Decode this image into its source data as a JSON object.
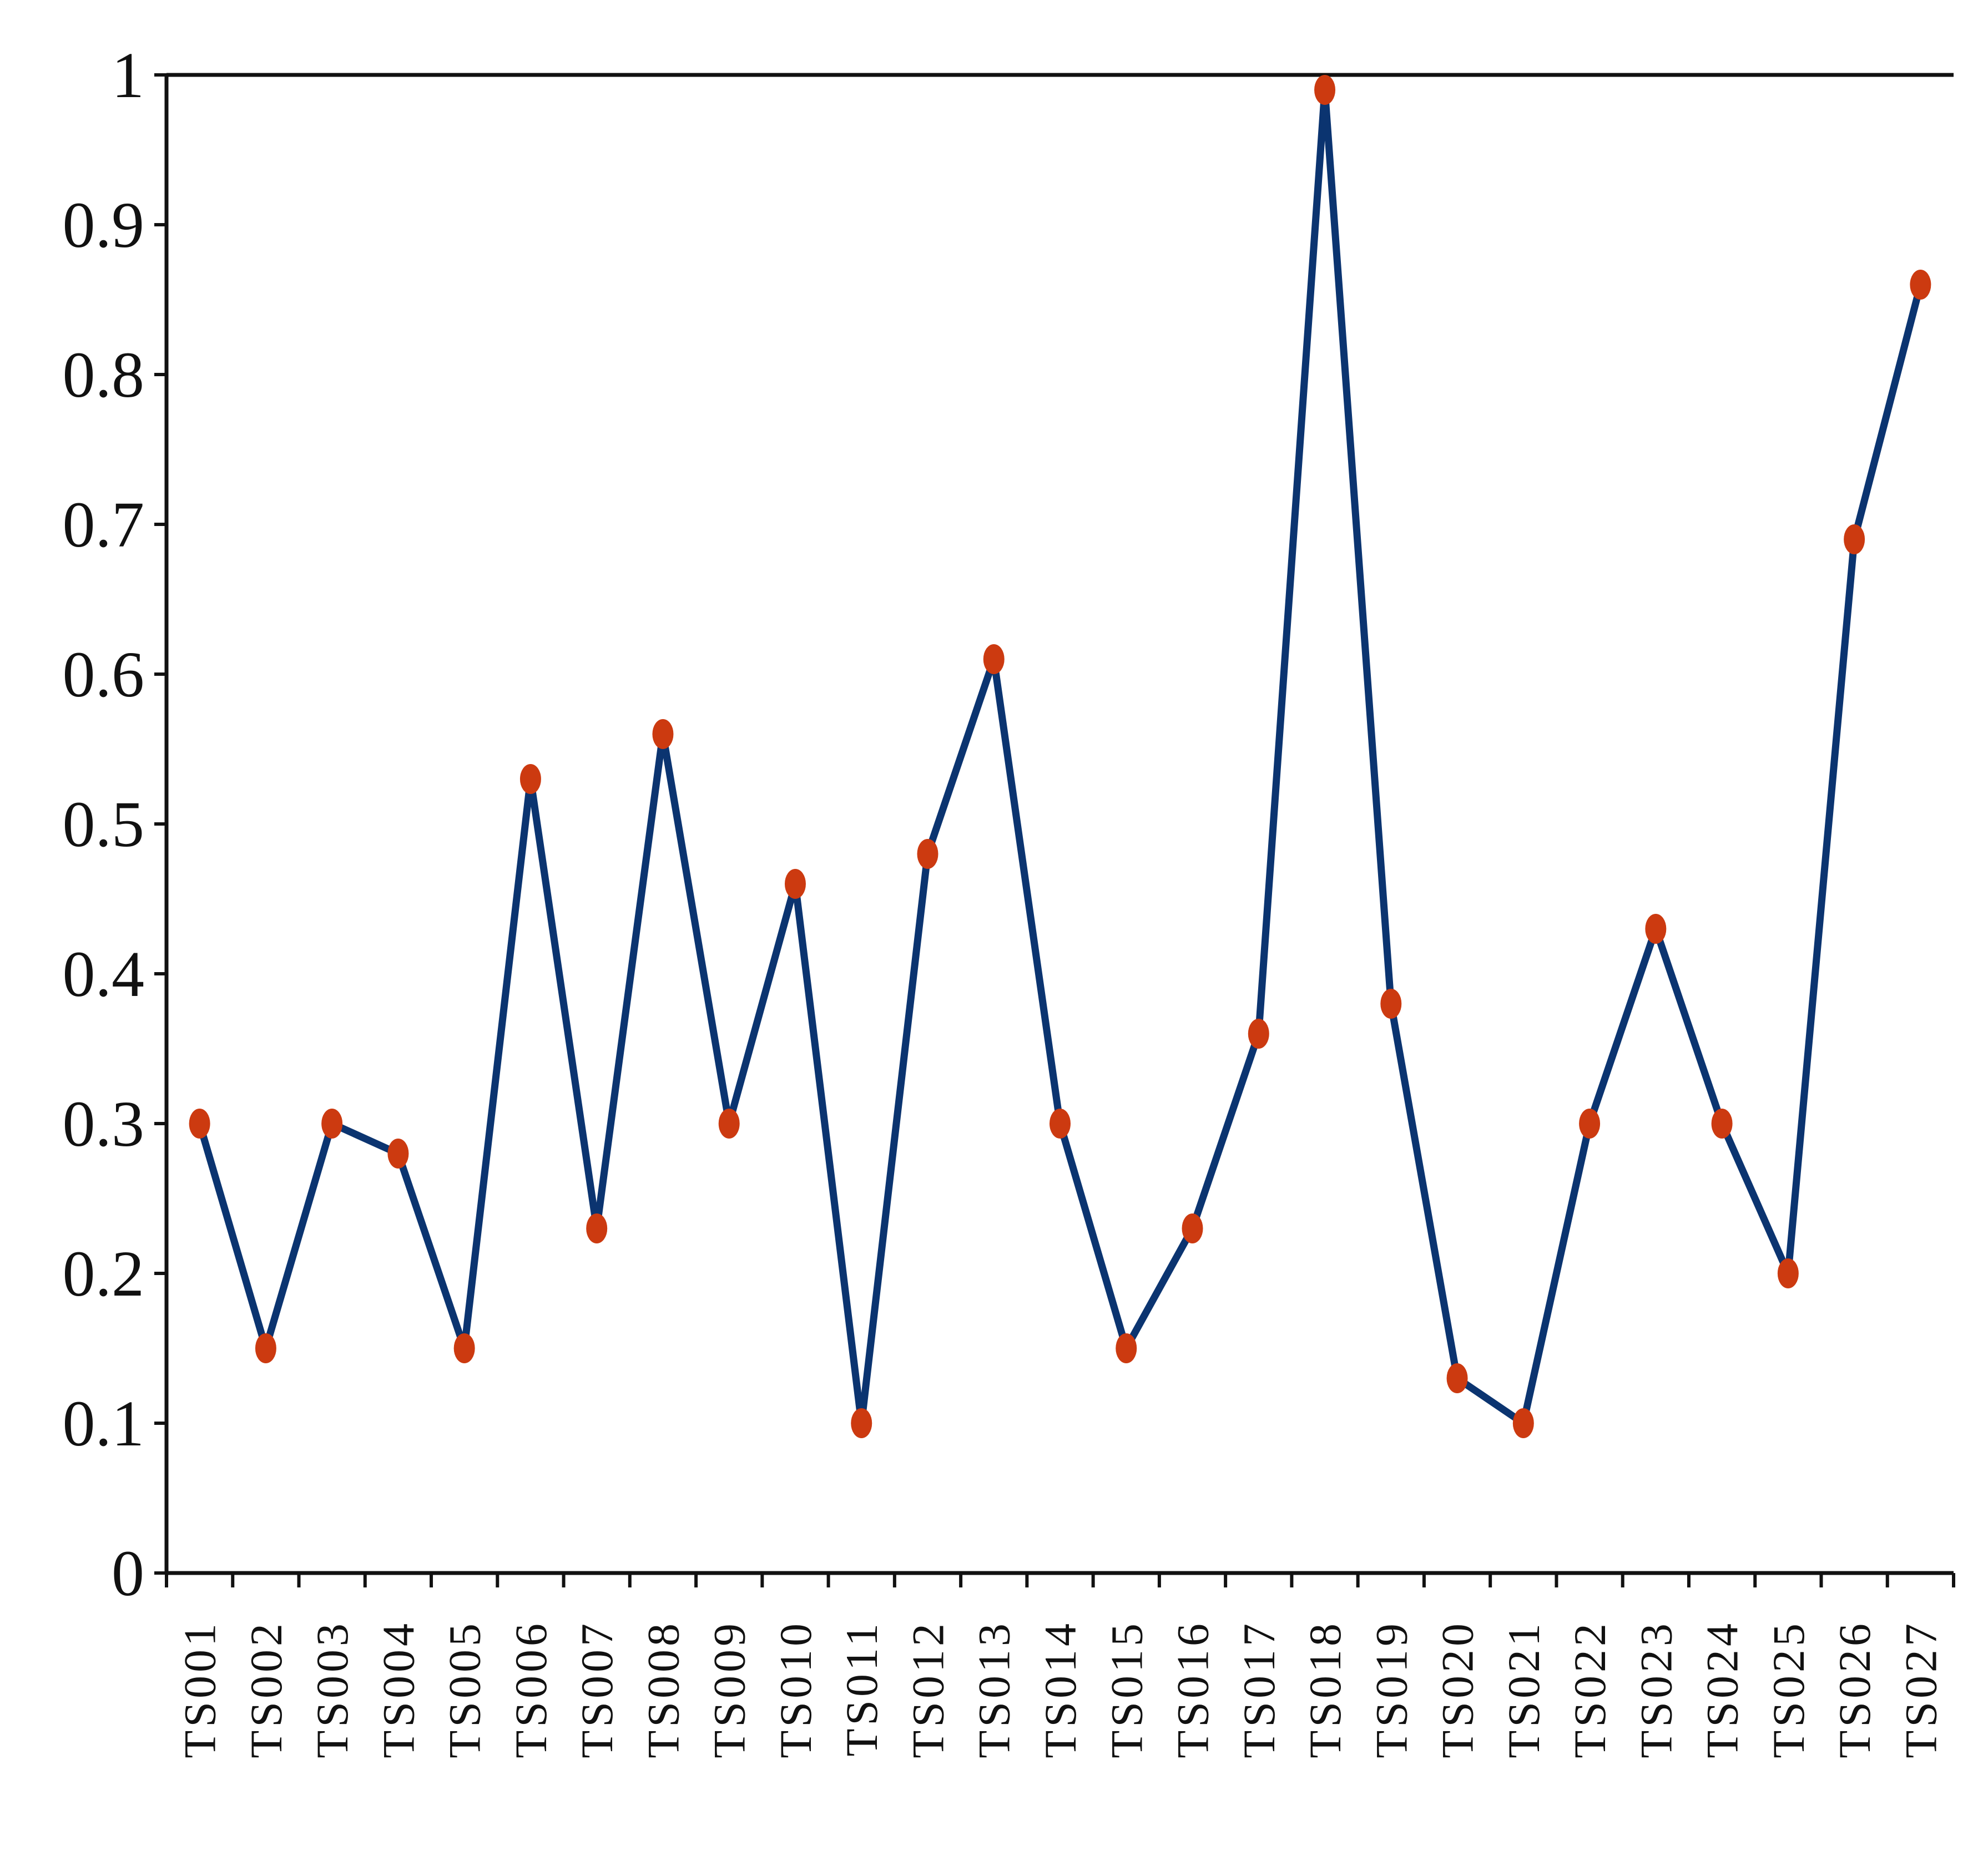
{
  "chart_data": {
    "type": "line",
    "title": "",
    "xlabel": "",
    "ylabel": "",
    "ylim": [
      0,
      1
    ],
    "yticks": [
      "0",
      "0.1",
      "0.2",
      "0.3",
      "0.4",
      "0.5",
      "0.6",
      "0.7",
      "0.8",
      "0.9",
      "1"
    ],
    "categories": [
      "TS001",
      "TS002",
      "TS003",
      "TS004",
      "TS005",
      "TS006",
      "TS007",
      "TS008",
      "TS009",
      "TS010",
      "TS011",
      "TS012",
      "TS013",
      "TS014",
      "TS015",
      "TS016",
      "TS017",
      "TS018",
      "TS019",
      "TS020",
      "TS021",
      "TS022",
      "TS023",
      "TS024",
      "TS025",
      "TS026",
      "TS027"
    ],
    "series": [
      {
        "values": [
          0.3,
          0.15,
          0.3,
          0.28,
          0.15,
          0.53,
          0.23,
          0.56,
          0.3,
          0.46,
          0.1,
          0.48,
          0.61,
          0.3,
          0.15,
          0.23,
          0.36,
          0.99,
          0.38,
          0.13,
          0.1,
          0.3,
          0.43,
          0.3,
          0.2,
          0.69,
          0.86
        ],
        "line_color": "#0b3470",
        "marker_color": "#cc3a10"
      }
    ],
    "grid": false,
    "legend": "none"
  }
}
